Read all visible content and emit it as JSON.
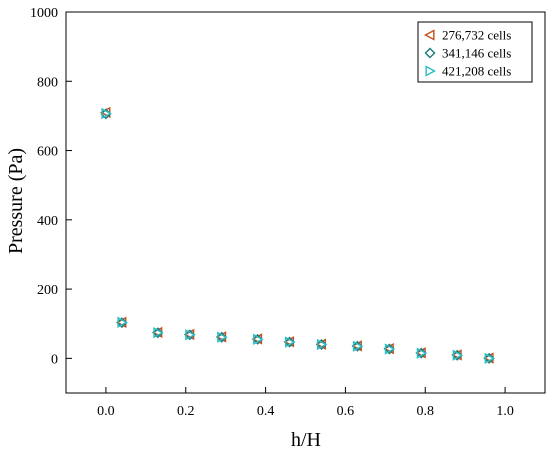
{
  "chart_data": {
    "type": "scatter",
    "xlabel": "h/H",
    "ylabel": "Pressure (Pa)",
    "xlim": [
      -0.1,
      1.1
    ],
    "ylim": [
      -100,
      1000
    ],
    "xticks": [
      0.0,
      0.2,
      0.4,
      0.6,
      0.8,
      1.0
    ],
    "xtick_labels": [
      "0.0",
      "0.2",
      "0.4",
      "0.6",
      "0.8",
      "1.0"
    ],
    "yticks": [
      0,
      200,
      400,
      600,
      800,
      1000
    ],
    "ytick_labels": [
      "0",
      "200",
      "400",
      "600",
      "800",
      "1000"
    ],
    "grid": false,
    "legend_position": "top-right",
    "x": [
      0.0,
      0.04,
      0.13,
      0.21,
      0.29,
      0.38,
      0.46,
      0.54,
      0.63,
      0.71,
      0.79,
      0.88,
      0.96
    ],
    "series": [
      {
        "name": "276,732 cells",
        "marker": "triangle-left",
        "color": "#c0501a",
        "values": [
          710,
          104,
          75,
          69,
          62,
          56,
          48,
          41,
          36,
          28,
          16,
          10,
          1
        ]
      },
      {
        "name": "341,146 cells",
        "marker": "diamond",
        "color": "#1d7a7a",
        "values": [
          706,
          103,
          74,
          68,
          61,
          55,
          47,
          40,
          35,
          27,
          15,
          9,
          0
        ]
      },
      {
        "name": "421,208 cells",
        "marker": "triangle-right",
        "color": "#2bbcc4",
        "values": [
          707,
          104,
          74,
          68,
          61,
          55,
          47,
          40,
          35,
          27,
          15,
          9,
          0
        ]
      }
    ]
  }
}
